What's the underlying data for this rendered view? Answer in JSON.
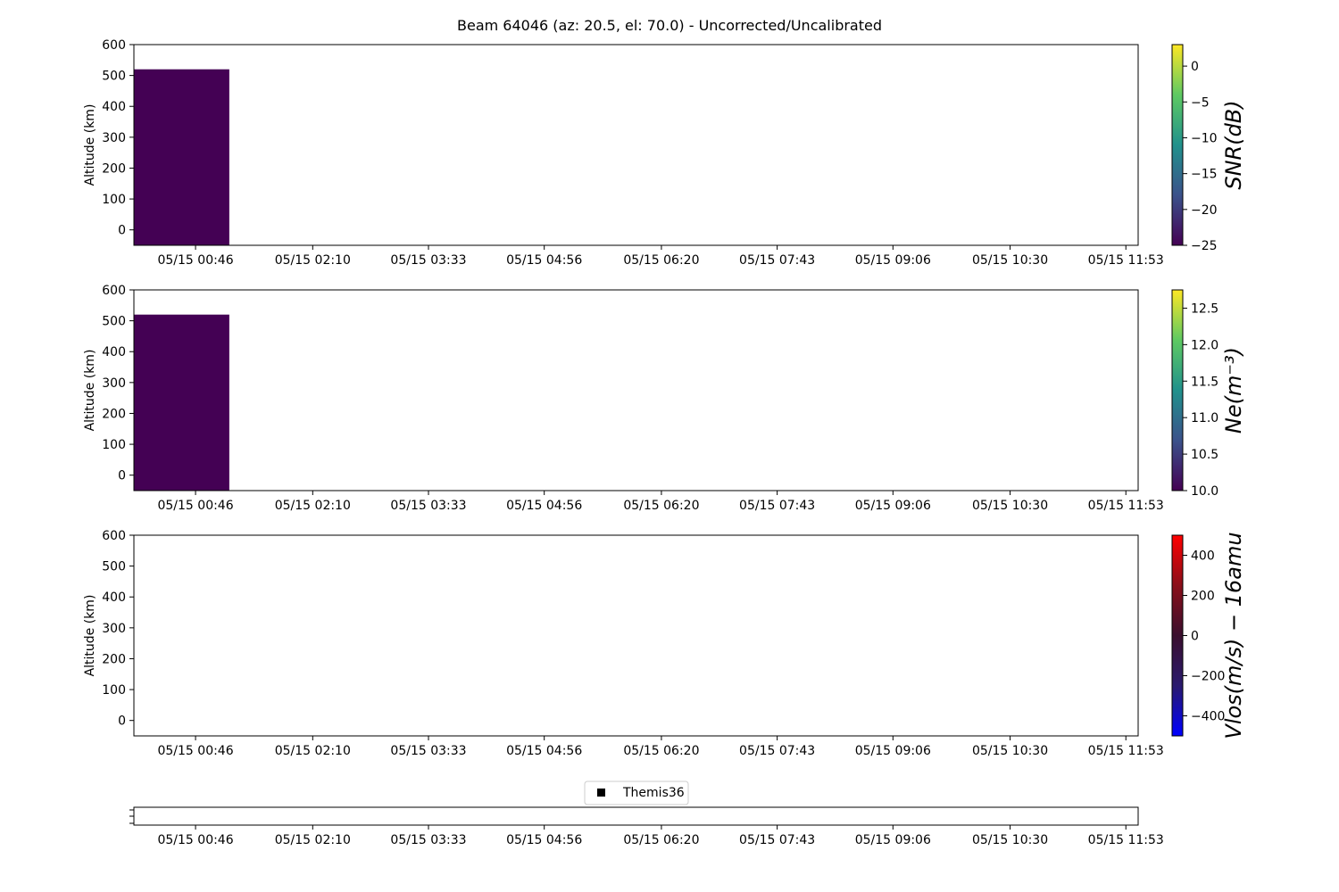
{
  "title": "Beam 64046 (az: 20.5, el: 70.0) - Uncorrected/Uncalibrated",
  "chart_data": [
    {
      "type": "heatmap",
      "panel": "snr",
      "ylabel": "Altitude (km)",
      "ylim": [
        -50,
        600
      ],
      "yticks": [
        0,
        100,
        200,
        300,
        400,
        500,
        600
      ],
      "xlim_hours": [
        0.03,
        12.03
      ],
      "xtick_labels": [
        "05/15 00:46",
        "05/15 02:10",
        "05/15 03:33",
        "05/15 04:56",
        "05/15 06:20",
        "05/15 07:43",
        "05/15 09:06",
        "05/15 10:30",
        "05/15 11:53"
      ],
      "xtick_hours": [
        0.7667,
        2.1667,
        3.55,
        4.9333,
        6.3333,
        7.7167,
        9.1,
        10.5,
        11.8833
      ],
      "cells": [
        {
          "t_start_hours": 0.03,
          "t_end_hours": 1.17,
          "alt_min": -50,
          "alt_max": 520,
          "color": "#440154"
        }
      ],
      "colorbar": {
        "label": "SNR(dB)",
        "colormap": "viridis",
        "range": [
          -25,
          3
        ],
        "ticks": [
          -25,
          -20,
          -15,
          -10,
          -5,
          0
        ],
        "tick_labels": [
          "−25",
          "−20",
          "−15",
          "−10",
          "−5",
          "0"
        ]
      },
      "grid": false
    },
    {
      "type": "heatmap",
      "panel": "ne",
      "ylabel": "Altitude (km)",
      "ylim": [
        -50,
        600
      ],
      "yticks": [
        0,
        100,
        200,
        300,
        400,
        500,
        600
      ],
      "xlim_hours": [
        0.03,
        12.03
      ],
      "xtick_labels": [
        "05/15 00:46",
        "05/15 02:10",
        "05/15 03:33",
        "05/15 04:56",
        "05/15 06:20",
        "05/15 07:43",
        "05/15 09:06",
        "05/15 10:30",
        "05/15 11:53"
      ],
      "xtick_hours": [
        0.7667,
        2.1667,
        3.55,
        4.9333,
        6.3333,
        7.7167,
        9.1,
        10.5,
        11.8833
      ],
      "cells": [
        {
          "t_start_hours": 0.03,
          "t_end_hours": 1.17,
          "alt_min": -50,
          "alt_max": 520,
          "color": "#440154"
        }
      ],
      "colorbar": {
        "label": "Ne(m⁻³)",
        "colormap": "viridis",
        "range": [
          10.0,
          12.75
        ],
        "ticks": [
          10.0,
          10.5,
          11.0,
          11.5,
          12.0,
          12.5
        ],
        "tick_labels": [
          "10.0",
          "10.5",
          "11.0",
          "11.5",
          "12.0",
          "12.5"
        ]
      },
      "grid": false
    },
    {
      "type": "heatmap",
      "panel": "vlos",
      "ylabel": "Altitude (km)",
      "ylim": [
        -50,
        600
      ],
      "yticks": [
        0,
        100,
        200,
        300,
        400,
        500,
        600
      ],
      "xlim_hours": [
        0.03,
        12.03
      ],
      "xtick_labels": [
        "05/15 00:46",
        "05/15 02:10",
        "05/15 03:33",
        "05/15 04:56",
        "05/15 06:20",
        "05/15 07:43",
        "05/15 09:06",
        "05/15 10:30",
        "05/15 11:53"
      ],
      "xtick_hours": [
        0.7667,
        2.1667,
        3.55,
        4.9333,
        6.3333,
        7.7167,
        9.1,
        10.5,
        11.8833
      ],
      "cells": [],
      "colorbar": {
        "label": "Vlos(m/s) − 16amu",
        "colormap": "blue-black-red",
        "range": [
          -500,
          500
        ],
        "ticks": [
          -400,
          -200,
          0,
          200,
          400
        ],
        "tick_labels": [
          "−400",
          "−200",
          "0",
          "200",
          "400"
        ]
      },
      "grid": false
    },
    {
      "type": "scatter",
      "panel": "themis",
      "xlim_hours": [
        0.03,
        12.03
      ],
      "xtick_labels": [
        "05/15 00:46",
        "05/15 02:10",
        "05/15 03:33",
        "05/15 04:56",
        "05/15 06:20",
        "05/15 07:43",
        "05/15 09:06",
        "05/15 10:30",
        "05/15 11:53"
      ],
      "xtick_hours": [
        0.7667,
        2.1667,
        3.55,
        4.9333,
        6.3333,
        7.7167,
        9.1,
        10.5,
        11.8833
      ],
      "series": [
        {
          "name": "Themis36",
          "marker": "square",
          "color": "#000000",
          "points": []
        }
      ],
      "legend": {
        "placement": "top-center",
        "entries": [
          "Themis36"
        ]
      }
    }
  ],
  "colormaps": {
    "viridis": [
      "#440154",
      "#3b528b",
      "#21918c",
      "#5ec962",
      "#fde725"
    ],
    "blue-black-red": [
      "#0000ff",
      "#2a1a6e",
      "#3a0f2e",
      "#8a0f1a",
      "#ff0000"
    ]
  }
}
